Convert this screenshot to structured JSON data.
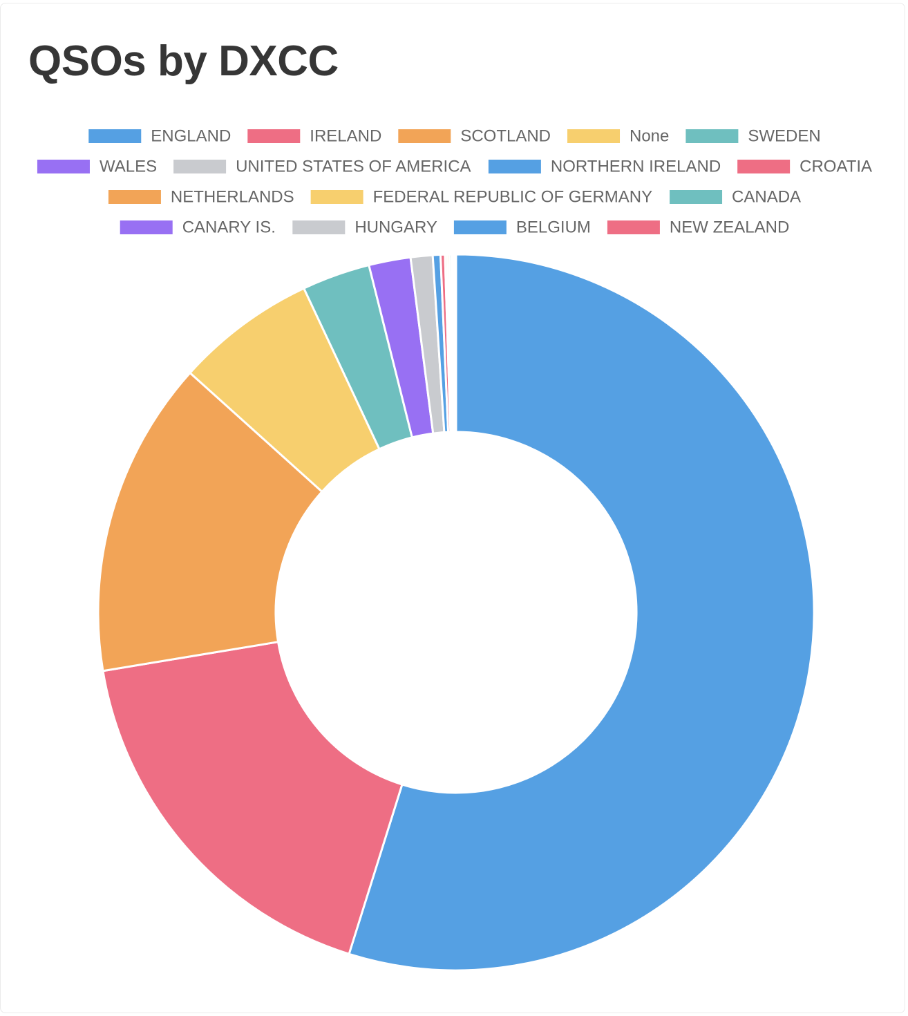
{
  "card": {
    "title": "QSOs by DXCC"
  },
  "chart_data": {
    "type": "pie",
    "variant": "doughnut",
    "title": "QSOs by DXCC",
    "legend_position": "top",
    "categories": [
      "ENGLAND",
      "IRELAND",
      "SCOTLAND",
      "None",
      "SWEDEN",
      "WALES",
      "UNITED STATES OF AMERICA",
      "NORTHERN IRELAND",
      "CROATIA",
      "NETHERLANDS",
      "FEDERAL REPUBLIC OF GERMANY",
      "CANADA",
      "CANARY IS.",
      "HUNGARY",
      "BELGIUM",
      "NEW ZEALAND"
    ],
    "values": [
      55.3,
      17.7,
      14.4,
      6.4,
      3.1,
      1.9,
      1.0,
      0.35,
      0.2,
      0.1,
      0.1,
      0.1,
      0.05,
      0.05,
      0.05,
      0.05
    ],
    "colors": [
      "#55a0e3",
      "#ee6e84",
      "#f2a457",
      "#f7cf6e",
      "#6fbfbf",
      "#9870f3",
      "#c9cbcf",
      "#55a0e3",
      "#ee6e84",
      "#f2a457",
      "#f7cf6e",
      "#6fbfbf",
      "#9870f3",
      "#c9cbcf",
      "#55a0e3",
      "#ee6e84"
    ]
  }
}
